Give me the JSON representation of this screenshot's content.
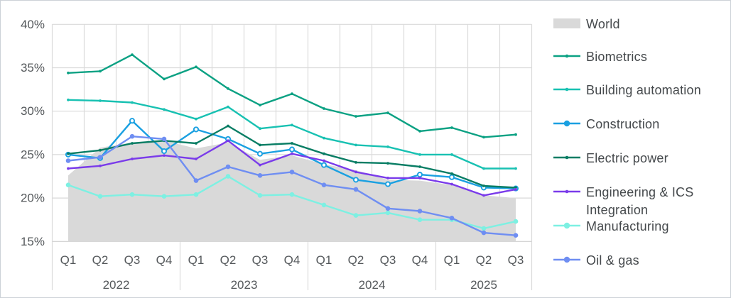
{
  "chart_data": {
    "type": "area",
    "title": "",
    "x": {
      "years": [
        {
          "label": "2022",
          "quarters": [
            "Q1",
            "Q2",
            "Q3",
            "Q4"
          ]
        },
        {
          "label": "2023",
          "quarters": [
            "Q1",
            "Q2",
            "Q3",
            "Q4"
          ]
        },
        {
          "label": "2024",
          "quarters": [
            "Q1",
            "Q2",
            "Q3",
            "Q4"
          ]
        },
        {
          "label": "2025",
          "quarters": [
            "Q1",
            "Q2",
            "Q3"
          ]
        }
      ]
    },
    "y_axis": {
      "min": 15,
      "max": 40,
      "step": 5,
      "tick_labels": [
        "40%",
        "35%",
        "30%",
        "25%",
        "20%",
        "15%"
      ],
      "unit": "%",
      "grid": true
    },
    "legend_position": "right",
    "area_series": {
      "name": "World",
      "color": "#d9d9d9",
      "values": [
        22.6,
        25.8,
        26.4,
        26.6,
        25.7,
        26.4,
        24.4,
        24.9,
        23.9,
        23.2,
        22.1,
        22.0,
        21.5,
        20.3,
        20.0
      ]
    },
    "series": [
      {
        "name": "Biometrics",
        "color": "#0ba183",
        "marker": "dot",
        "values": [
          34.4,
          34.6,
          36.5,
          33.7,
          35.1,
          32.6,
          30.7,
          32.0,
          30.3,
          29.4,
          29.8,
          27.7,
          28.1,
          27.0,
          27.3
        ]
      },
      {
        "name": "Building automation",
        "color": "#18c1b2",
        "marker": "dot",
        "values": [
          31.3,
          31.2,
          31.0,
          30.2,
          29.1,
          30.5,
          28.0,
          28.4,
          26.9,
          26.1,
          25.9,
          25.0,
          25.0,
          23.4,
          23.4
        ]
      },
      {
        "name": "Construction",
        "color": "#1aa0e1",
        "marker": "open-circle",
        "values": [
          25.0,
          24.6,
          28.9,
          25.4,
          27.9,
          26.8,
          25.1,
          25.6,
          23.8,
          22.1,
          21.6,
          22.7,
          22.4,
          21.2,
          21.1
        ]
      },
      {
        "name": "Electric power",
        "color": "#087d64",
        "marker": "dot",
        "values": [
          25.1,
          25.5,
          26.3,
          26.6,
          26.3,
          28.3,
          26.1,
          26.3,
          25.1,
          24.1,
          24.0,
          23.6,
          22.8,
          21.4,
          21.2
        ]
      },
      {
        "name": "Engineering & ICS Integration",
        "color": "#7a3bea",
        "marker": "dot",
        "values": [
          23.4,
          23.7,
          24.5,
          24.9,
          24.5,
          26.6,
          23.8,
          25.1,
          24.3,
          23.0,
          22.3,
          22.3,
          21.6,
          20.3,
          21.0
        ]
      },
      {
        "name": "Manufacturing",
        "color": "#7df0e2",
        "marker": "circle",
        "values": [
          21.5,
          20.2,
          20.4,
          20.2,
          20.4,
          22.5,
          20.3,
          20.4,
          19.2,
          18.0,
          18.3,
          17.5,
          17.5,
          16.5,
          17.3
        ]
      },
      {
        "name": "Oil & gas",
        "color": "#6f8ef2",
        "marker": "circle",
        "values": [
          24.3,
          24.7,
          27.1,
          26.8,
          22.0,
          23.6,
          22.6,
          23.0,
          21.5,
          21.0,
          18.8,
          18.5,
          17.7,
          16.0,
          15.7
        ]
      }
    ],
    "colors": {
      "grid": "#dadada",
      "axis_line": "#cfcfcf",
      "axis_text": "#54585b",
      "legend_text": "#45494c",
      "area_fill": "#d9d9d9",
      "background": "#ffffff"
    }
  }
}
